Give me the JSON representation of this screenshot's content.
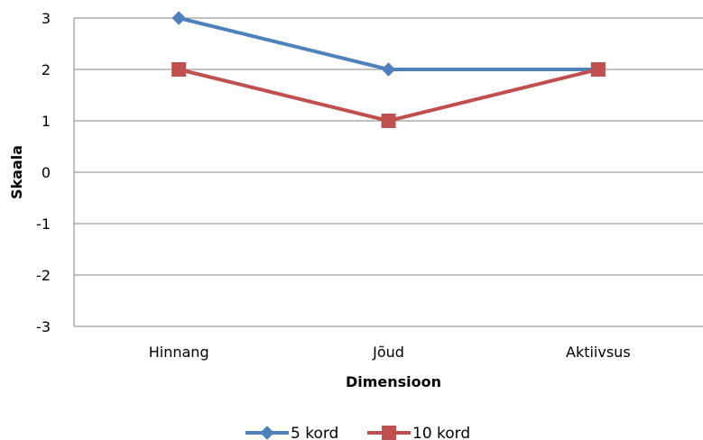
{
  "chart_data": {
    "type": "line",
    "categories": [
      "Hinnang",
      "Jõud",
      "Aktiivsus"
    ],
    "series": [
      {
        "name": "5 kord",
        "values": [
          3,
          2,
          2
        ],
        "color": "#4F81BD",
        "marker": "diamond"
      },
      {
        "name": "10 kord",
        "values": [
          2,
          1,
          2
        ],
        "color": "#C0504D",
        "marker": "square"
      }
    ],
    "xlabel": "Dimensioon",
    "ylabel": "Skaala",
    "ylim": [
      -3,
      3
    ],
    "yticks": [
      "3",
      "2",
      "1",
      "0",
      "-1",
      "-2",
      "-3"
    ],
    "grid": true,
    "legend_position": "bottom"
  }
}
